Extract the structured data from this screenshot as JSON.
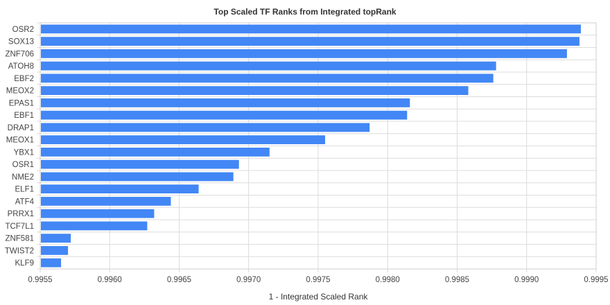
{
  "chart_data": {
    "type": "bar",
    "orientation": "horizontal",
    "title": "Top Scaled TF Ranks from Integrated topRank",
    "xlabel": "1 - Integrated Scaled Rank",
    "ylabel": "",
    "xlim": [
      0.9955,
      0.9995
    ],
    "xticks": [
      "0.9955",
      "0.9960",
      "0.9965",
      "0.9970",
      "0.9975",
      "0.9980",
      "0.9985",
      "0.9990",
      "0.9995"
    ],
    "grid": true,
    "legend": "none",
    "bar_color": "#4287f5",
    "categories": [
      "OSR2",
      "SOX13",
      "ZNF706",
      "ATOH8",
      "EBF2",
      "MEOX2",
      "EPAS1",
      "EBF1",
      "DRAP1",
      "MEOX1",
      "YBX1",
      "OSR1",
      "NME2",
      "ELF1",
      "ATF4",
      "PRRX1",
      "TCF7L1",
      "ZNF581",
      "TWIST2",
      "KLF9"
    ],
    "values": [
      0.99939,
      0.99938,
      0.99929,
      0.99878,
      0.99876,
      0.99858,
      0.99816,
      0.99814,
      0.99787,
      0.99755,
      0.99715,
      0.99693,
      0.99689,
      0.99664,
      0.99644,
      0.99632,
      0.99627,
      0.99572,
      0.9957,
      0.99565
    ]
  }
}
